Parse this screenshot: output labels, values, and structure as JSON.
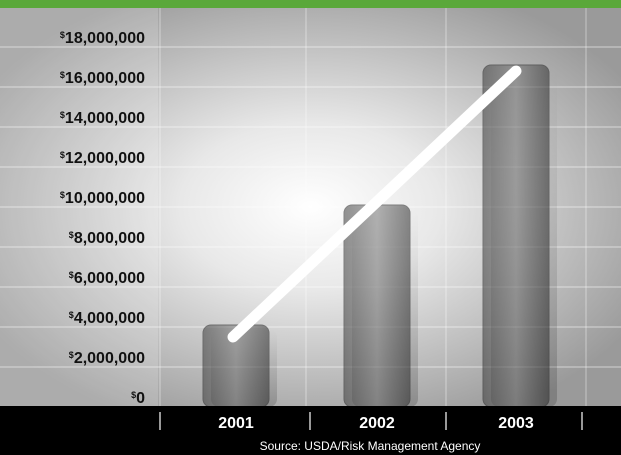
{
  "chart_data": {
    "type": "bar",
    "categories": [
      "2001",
      "2002",
      "2003"
    ],
    "values": [
      3600000,
      9600000,
      16600000
    ],
    "trend_line": [
      3000000,
      9600000,
      16300000
    ],
    "ylim": [
      0,
      18000000
    ],
    "yticks": [
      {
        "value": 0,
        "currency": "$",
        "label": "0"
      },
      {
        "value": 2000000,
        "currency": "$",
        "label": "2,000,000"
      },
      {
        "value": 4000000,
        "currency": "$",
        "label": "4,000,000"
      },
      {
        "value": 6000000,
        "currency": "$",
        "label": "6,000,000"
      },
      {
        "value": 8000000,
        "currency": "$",
        "label": "8,000,000"
      },
      {
        "value": 10000000,
        "currency": "$",
        "label": "10,000,000"
      },
      {
        "value": 12000000,
        "currency": "$",
        "label": "12,000,000"
      },
      {
        "value": 14000000,
        "currency": "$",
        "label": "14,000,000"
      },
      {
        "value": 16000000,
        "currency": "$",
        "label": "16,000,000"
      },
      {
        "value": 18000000,
        "currency": "$",
        "label": "18,000,000"
      }
    ],
    "source": "Source: USDA/Risk Management Agency",
    "grid": true,
    "colors": {
      "top_band": "#5aa83a",
      "bar_fill": "#6a6a6a",
      "bar_fill_dark": "#262626",
      "trend_line": "#ffffff",
      "footer": "#000000"
    }
  }
}
